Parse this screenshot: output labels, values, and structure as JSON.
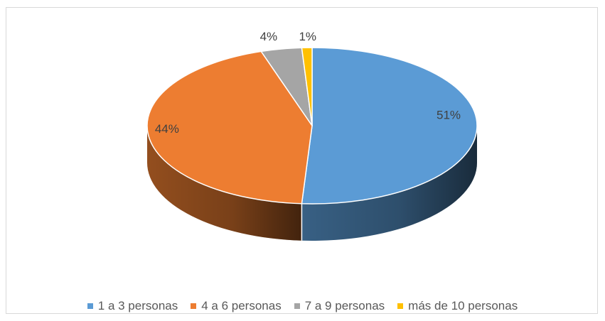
{
  "chart_data": {
    "type": "pie",
    "style": "3d",
    "categories": [
      "1 a 3 personas",
      "4 a 6 personas",
      "7 a 9 personas",
      "más de 10 personas"
    ],
    "values": [
      51,
      44,
      4,
      1
    ],
    "data_labels": [
      "51%",
      "44%",
      "4%",
      "1%"
    ],
    "colors": [
      "#5b9bd5",
      "#ed7d31",
      "#a5a5a5",
      "#ffc000"
    ],
    "legend_position": "bottom"
  }
}
